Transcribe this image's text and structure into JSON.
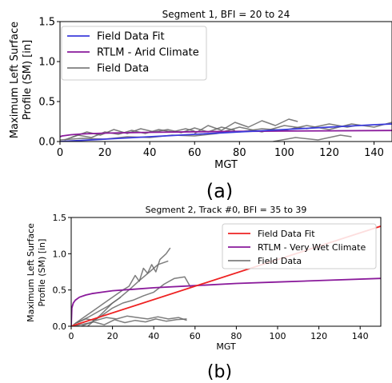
{
  "chart_data": [
    {
      "type": "line",
      "panel_label": "(a)",
      "title": "Segment 1, BFI = 20 to 24",
      "xlabel": "MGT",
      "ylabel_lines": [
        "Maximum Left Surface",
        "Profile (SM) [in]"
      ],
      "xlim": [
        0,
        148
      ],
      "ylim": [
        0,
        1.5
      ],
      "xticks": [
        0,
        20,
        40,
        60,
        80,
        100,
        120,
        140
      ],
      "yticks": [
        0.0,
        0.5,
        1.0,
        1.5
      ],
      "legend_position": "upper-left",
      "series": [
        {
          "name": "Field Data Fit",
          "color": "#3b3bdc",
          "role": "fit",
          "x": [
            0,
            20,
            40,
            60,
            80,
            100,
            120,
            140,
            148
          ],
          "y": [
            0.0,
            0.03,
            0.06,
            0.09,
            0.12,
            0.15,
            0.18,
            0.21,
            0.22
          ]
        },
        {
          "name": "RTLM - Arid Climate",
          "color": "#8a1a9b",
          "role": "model",
          "x": [
            0,
            1,
            5,
            10,
            20,
            40,
            60,
            80,
            100,
            120,
            148
          ],
          "y": [
            0.06,
            0.07,
            0.085,
            0.095,
            0.105,
            0.115,
            0.122,
            0.127,
            0.131,
            0.134,
            0.138
          ]
        },
        {
          "name": "Field Data",
          "color": "#666666",
          "role": "data",
          "traces": [
            {
              "x": [
                2,
                8,
                14,
                20,
                26,
                32,
                38,
                44,
                50,
                56,
                60
              ],
              "y": [
                0.02,
                0.08,
                0.05,
                0.12,
                0.09,
                0.14,
                0.1,
                0.15,
                0.12,
                0.16,
                0.13
              ]
            },
            {
              "x": [
                5,
                12,
                18,
                24,
                30,
                36,
                42,
                48,
                54,
                60,
                66,
                72,
                78
              ],
              "y": [
                0.05,
                0.12,
                0.08,
                0.15,
                0.1,
                0.16,
                0.12,
                0.15,
                0.11,
                0.17,
                0.12,
                0.18,
                0.14
              ]
            },
            {
              "x": [
                60,
                66,
                72,
                78,
                84,
                90,
                96,
                102,
                106
              ],
              "y": [
                0.1,
                0.2,
                0.14,
                0.24,
                0.18,
                0.26,
                0.2,
                0.28,
                0.25
              ]
            },
            {
              "x": [
                70,
                80,
                90,
                100,
                110,
                120,
                128,
                132
              ],
              "y": [
                0.1,
                0.18,
                0.12,
                0.2,
                0.16,
                0.22,
                0.18,
                0.2
              ]
            },
            {
              "x": [
                80,
                90,
                100,
                110,
                120,
                130,
                140,
                148
              ],
              "y": [
                0.12,
                0.16,
                0.14,
                0.2,
                0.15,
                0.22,
                0.18,
                0.24
              ]
            },
            {
              "x": [
                0,
                10,
                20,
                30,
                40,
                50,
                60,
                70
              ],
              "y": [
                0.02,
                0.04,
                0.03,
                0.06,
                0.05,
                0.08,
                0.07,
                0.1
              ]
            },
            {
              "x": [
                95,
                105,
                115,
                125,
                130
              ],
              "y": [
                0.0,
                0.05,
                0.02,
                0.08,
                0.06
              ]
            }
          ]
        }
      ]
    },
    {
      "type": "line",
      "panel_label": "(b)",
      "title": "Segment 2, Track #0, BFI = 35 to 39",
      "xlabel": "MGT",
      "ylabel_lines": [
        "Maximum Left Surface",
        "Profile (SM) [in]"
      ],
      "xlim": [
        0,
        150
      ],
      "ylim": [
        0,
        1.5
      ],
      "xticks": [
        0,
        20,
        40,
        60,
        80,
        100,
        120,
        140
      ],
      "yticks": [
        0.0,
        0.5,
        1.0,
        1.5
      ],
      "legend_position": "upper-right",
      "series": [
        {
          "name": "Field Data Fit",
          "color": "#ee2222",
          "role": "fit",
          "x": [
            0,
            150
          ],
          "y": [
            0.0,
            1.38
          ]
        },
        {
          "name": "RTLM - Very Wet Climate",
          "color": "#8a1a9b",
          "role": "model",
          "x": [
            0,
            0.3,
            1,
            2,
            4,
            7,
            10,
            15,
            20,
            30,
            40,
            60,
            80,
            100,
            120,
            150
          ],
          "y": [
            0.0,
            0.25,
            0.32,
            0.36,
            0.4,
            0.43,
            0.45,
            0.47,
            0.49,
            0.51,
            0.53,
            0.56,
            0.59,
            0.61,
            0.63,
            0.66
          ]
        },
        {
          "name": "Field Data",
          "color": "#666666",
          "role": "data",
          "traces": [
            {
              "x": [
                1,
                5,
                10,
                15,
                20,
                25,
                28,
                31,
                33,
                35,
                37,
                39,
                41,
                43,
                46,
                48
              ],
              "y": [
                0.02,
                0.1,
                0.2,
                0.3,
                0.4,
                0.5,
                0.55,
                0.7,
                0.62,
                0.8,
                0.73,
                0.85,
                0.75,
                0.92,
                1.0,
                1.08
              ]
            },
            {
              "x": [
                3,
                8,
                13,
                18,
                23,
                28,
                33,
                38,
                42,
                47
              ],
              "y": [
                0.05,
                0.12,
                0.2,
                0.28,
                0.38,
                0.5,
                0.63,
                0.75,
                0.85,
                0.9
              ]
            },
            {
              "x": [
                5,
                10,
                15,
                20,
                25,
                30,
                35,
                40,
                45,
                50,
                55,
                58
              ],
              "y": [
                0.0,
                0.06,
                0.15,
                0.25,
                0.32,
                0.36,
                0.42,
                0.47,
                0.58,
                0.66,
                0.68,
                0.53
              ]
            },
            {
              "x": [
                2,
                7,
                12,
                17,
                22,
                27,
                32,
                37,
                42,
                47,
                52,
                56
              ],
              "y": [
                0.04,
                0.1,
                0.08,
                0.12,
                0.1,
                0.14,
                0.12,
                0.1,
                0.13,
                0.1,
                0.12,
                0.08
              ]
            },
            {
              "x": [
                1,
                6,
                11,
                16,
                21,
                26,
                31,
                36,
                41,
                46,
                51,
                56
              ],
              "y": [
                0.0,
                0.03,
                0.06,
                0.02,
                0.09,
                0.05,
                0.08,
                0.06,
                0.1,
                0.07,
                0.09,
                0.1
              ]
            },
            {
              "x": [
                8,
                14,
                20,
                24
              ],
              "y": [
                0.0,
                0.15,
                0.32,
                0.4
              ]
            }
          ]
        }
      ]
    }
  ]
}
